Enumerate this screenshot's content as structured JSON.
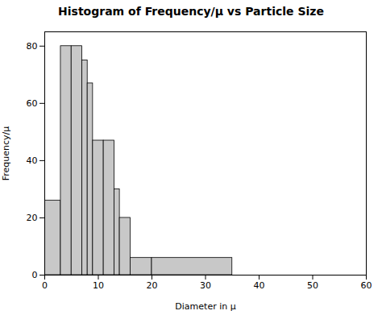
{
  "chart_data": {
    "type": "histogram",
    "title": "Histogram of Frequency/μ vs Particle Size",
    "xlabel": "Diameter in μ",
    "ylabel": "Frequency/μ",
    "bins": [
      0,
      3,
      5,
      7,
      8,
      9,
      11,
      13,
      14,
      16,
      20,
      35
    ],
    "values": [
      26,
      80,
      80,
      75,
      67,
      47,
      47,
      30,
      20,
      6,
      6
    ],
    "color": "#c8c8c8",
    "xlim": [
      0,
      60
    ],
    "ylim": [
      0,
      85
    ],
    "xticks": [
      0,
      10,
      20,
      30,
      40,
      50,
      60
    ],
    "yticks": [
      0,
      20,
      40,
      60,
      80
    ]
  }
}
